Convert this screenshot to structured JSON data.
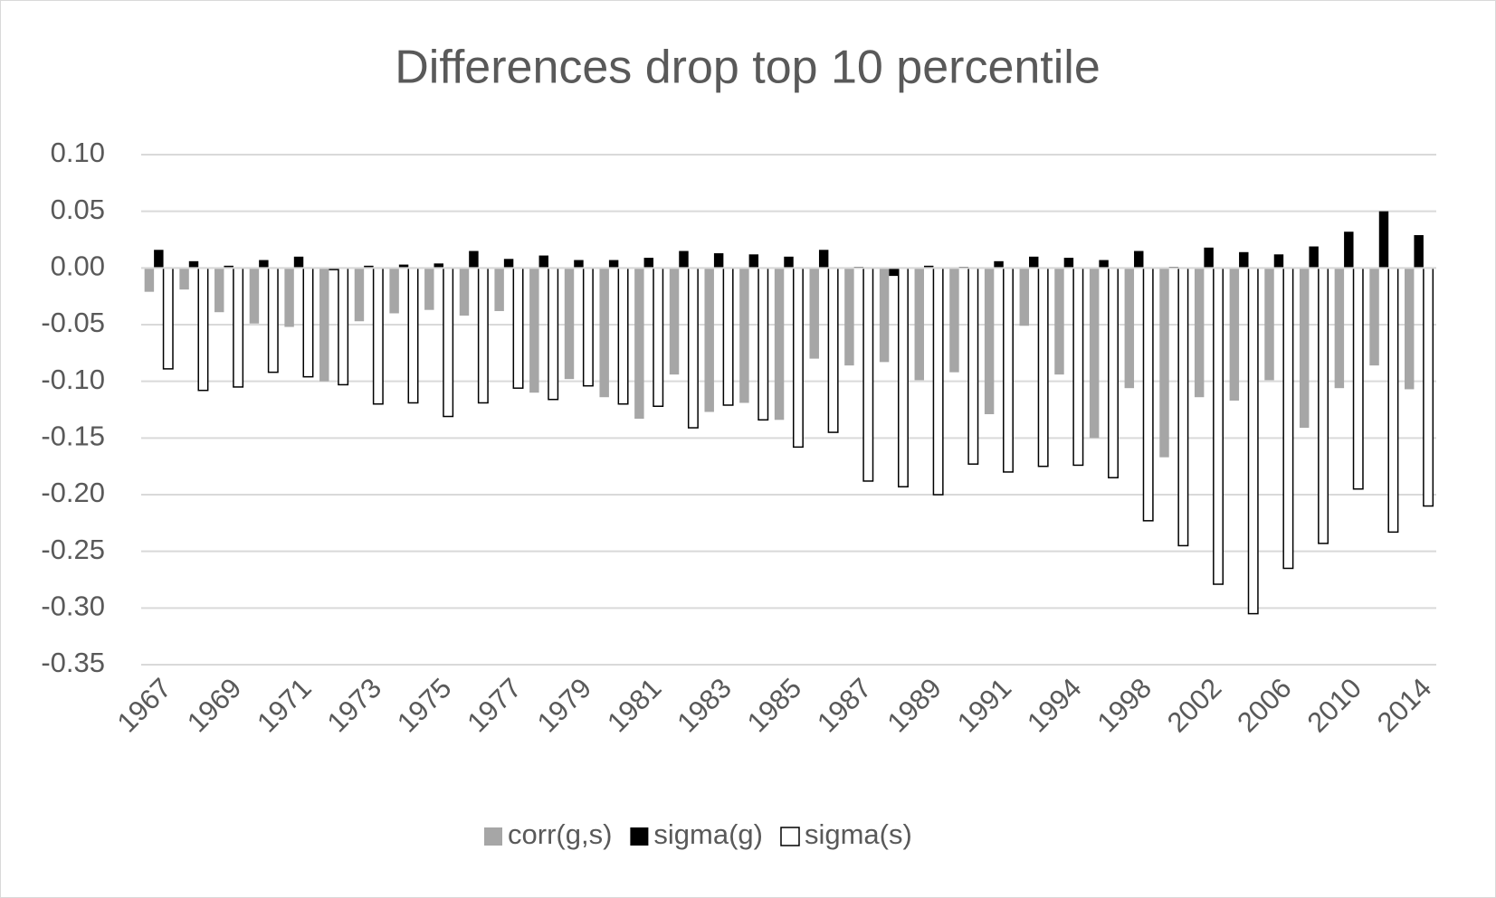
{
  "chart_data": {
    "type": "bar",
    "title": "Differences drop top 10 percentile",
    "categories": [
      "1967",
      null,
      "1969",
      null,
      "1971",
      null,
      "1973",
      null,
      "1975",
      null,
      "1977",
      null,
      "1979",
      null,
      "1981",
      null,
      "1983",
      null,
      "1985",
      null,
      "1987",
      null,
      "1989",
      null,
      "1991",
      null,
      "1994",
      null,
      "1998",
      null,
      "2002",
      null,
      "2006",
      null,
      "2010",
      null,
      "2014"
    ],
    "series": [
      {
        "name": "corr(g,s)",
        "color": "#a6a6a6",
        "values": [
          -0.021,
          -0.019,
          -0.039,
          -0.049,
          -0.052,
          -0.1,
          -0.047,
          -0.04,
          -0.037,
          -0.042,
          -0.038,
          -0.11,
          -0.098,
          -0.114,
          -0.133,
          -0.094,
          -0.127,
          -0.119,
          -0.134,
          -0.08,
          -0.086,
          -0.083,
          -0.099,
          -0.092,
          -0.129,
          -0.051,
          -0.094,
          -0.15,
          -0.106,
          -0.167,
          -0.114,
          -0.117,
          -0.099,
          -0.141,
          -0.106,
          -0.086,
          -0.107
        ]
      },
      {
        "name": "sigma(g)",
        "color": "#000000",
        "values": [
          0.016,
          0.006,
          0.002,
          0.007,
          0.01,
          -0.002,
          0.002,
          0.003,
          0.004,
          0.015,
          0.008,
          0.011,
          0.007,
          0.007,
          0.009,
          0.015,
          0.013,
          0.012,
          0.01,
          0.016,
          0.001,
          -0.007,
          0.002,
          0.001,
          0.006,
          0.01,
          0.009,
          0.007,
          0.015,
          0.001,
          0.018,
          0.014,
          0.012,
          0.019,
          0.032,
          0.05,
          0.029
        ]
      },
      {
        "name": "sigma(s)",
        "color": "#ffffff",
        "values": [
          -0.089,
          -0.108,
          -0.105,
          -0.092,
          -0.096,
          -0.103,
          -0.12,
          -0.119,
          -0.131,
          -0.119,
          -0.106,
          -0.116,
          -0.104,
          -0.12,
          -0.122,
          -0.141,
          -0.121,
          -0.134,
          -0.158,
          -0.145,
          -0.188,
          -0.193,
          -0.2,
          -0.173,
          -0.18,
          -0.175,
          -0.174,
          -0.185,
          -0.223,
          -0.245,
          -0.279,
          -0.305,
          -0.265,
          -0.243,
          -0.195,
          -0.233,
          -0.21
        ]
      }
    ],
    "ylim": [
      -0.35,
      0.1
    ],
    "yticks": [
      {
        "value": 0.1,
        "label": "0.10"
      },
      {
        "value": 0.05,
        "label": "0.05"
      },
      {
        "value": 0,
        "label": "0.00"
      },
      {
        "value": -0.05,
        "label": "-0.05"
      },
      {
        "value": -0.1,
        "label": "-0.10"
      },
      {
        "value": -0.15,
        "label": "-0.15"
      },
      {
        "value": -0.2,
        "label": "-0.20"
      },
      {
        "value": -0.25,
        "label": "-0.25"
      },
      {
        "value": -0.3,
        "label": "-0.30"
      },
      {
        "value": -0.35,
        "label": "-0.35"
      }
    ],
    "grid": true,
    "legend": "bottom"
  }
}
